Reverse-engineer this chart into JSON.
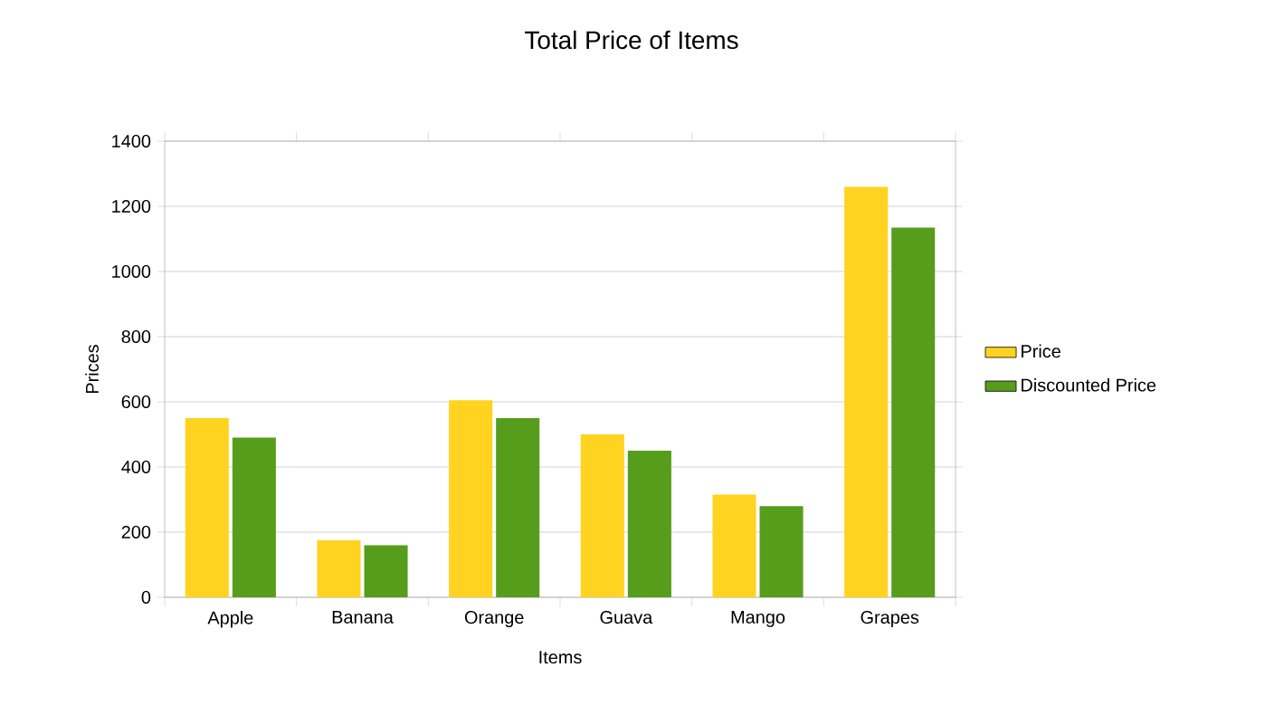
{
  "chart_data": {
    "type": "bar",
    "title": "Total Price of Items",
    "xlabel": "Items",
    "ylabel": "Prices",
    "categories": [
      "Apple",
      "Banana",
      "Orange",
      "Guava",
      "Mango",
      "Grapes"
    ],
    "series": [
      {
        "name": "Price",
        "color": "#ffd320",
        "values": [
          550,
          175,
          605,
          500,
          315,
          1260
        ]
      },
      {
        "name": "Discounted Price",
        "color": "#579d1c",
        "values": [
          490,
          160,
          550,
          450,
          280,
          1135
        ]
      }
    ],
    "ylim": [
      0,
      1400
    ],
    "yticks": [
      0,
      200,
      400,
      600,
      800,
      1000,
      1200,
      1400
    ],
    "grid": "y",
    "legend": "right"
  }
}
